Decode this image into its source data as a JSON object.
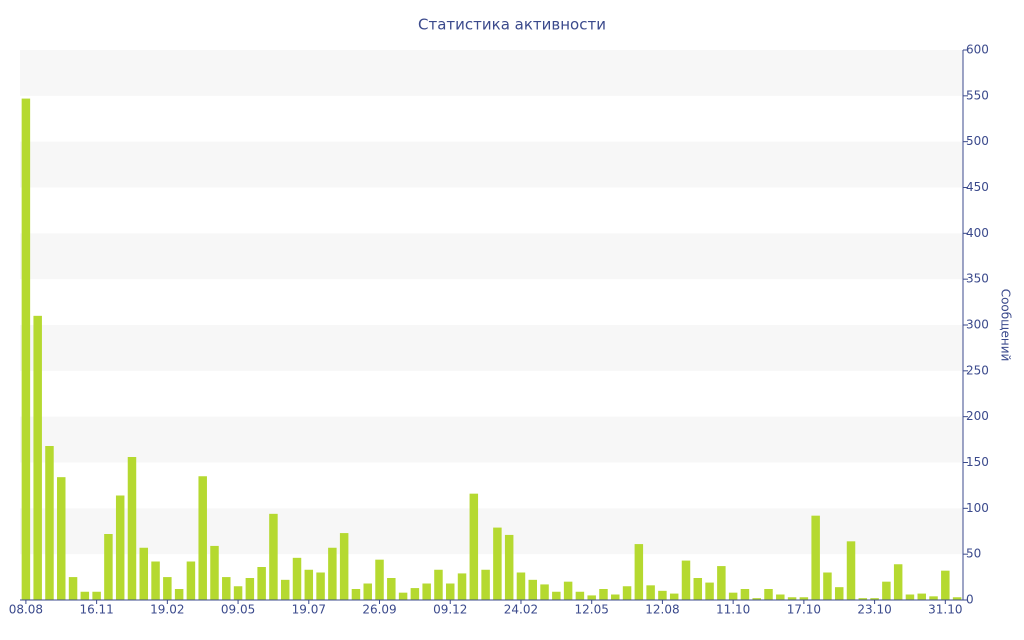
{
  "chart_data": {
    "type": "bar",
    "title": "Статистика активности",
    "y_label": "Сообщений",
    "categories": [
      "08.08",
      null,
      null,
      null,
      null,
      null,
      "16.11",
      null,
      null,
      null,
      null,
      null,
      "19.02",
      null,
      null,
      null,
      null,
      null,
      "09.05",
      null,
      null,
      null,
      null,
      null,
      "19.07",
      null,
      null,
      null,
      null,
      null,
      "26.09",
      null,
      null,
      null,
      null,
      null,
      "09.12",
      null,
      null,
      null,
      null,
      null,
      "24.02",
      null,
      null,
      null,
      null,
      null,
      "12.05",
      null,
      null,
      null,
      null,
      null,
      "12.08",
      null,
      null,
      null,
      null,
      null,
      "11.10",
      null,
      null,
      null,
      null,
      null,
      "17.10",
      null,
      null,
      null,
      null,
      null,
      "23.10",
      null,
      null,
      null,
      null,
      null,
      "31.10",
      null
    ],
    "values": [
      547,
      310,
      168,
      134,
      25,
      9,
      9,
      72,
      114,
      156,
      57,
      42,
      25,
      12,
      42,
      135,
      59,
      25,
      15,
      24,
      36,
      94,
      22,
      46,
      33,
      30,
      57,
      73,
      12,
      18,
      44,
      24,
      8,
      13,
      18,
      33,
      18,
      29,
      116,
      33,
      79,
      71,
      30,
      22,
      17,
      9,
      20,
      9,
      5,
      12,
      6,
      15,
      61,
      16,
      10,
      7,
      43,
      24,
      19,
      37,
      8,
      12,
      2,
      12,
      6,
      3,
      3,
      92,
      30,
      14,
      64,
      2,
      2,
      20,
      39,
      6,
      7,
      4,
      32,
      3
    ],
    "color": "#b5d930",
    "ylim": [
      0,
      600
    ],
    "yticks": [
      0,
      50,
      100,
      150,
      200,
      250,
      300,
      350,
      400,
      450,
      500,
      550,
      600
    ],
    "y_axis_side": "right",
    "grid": "bands"
  }
}
